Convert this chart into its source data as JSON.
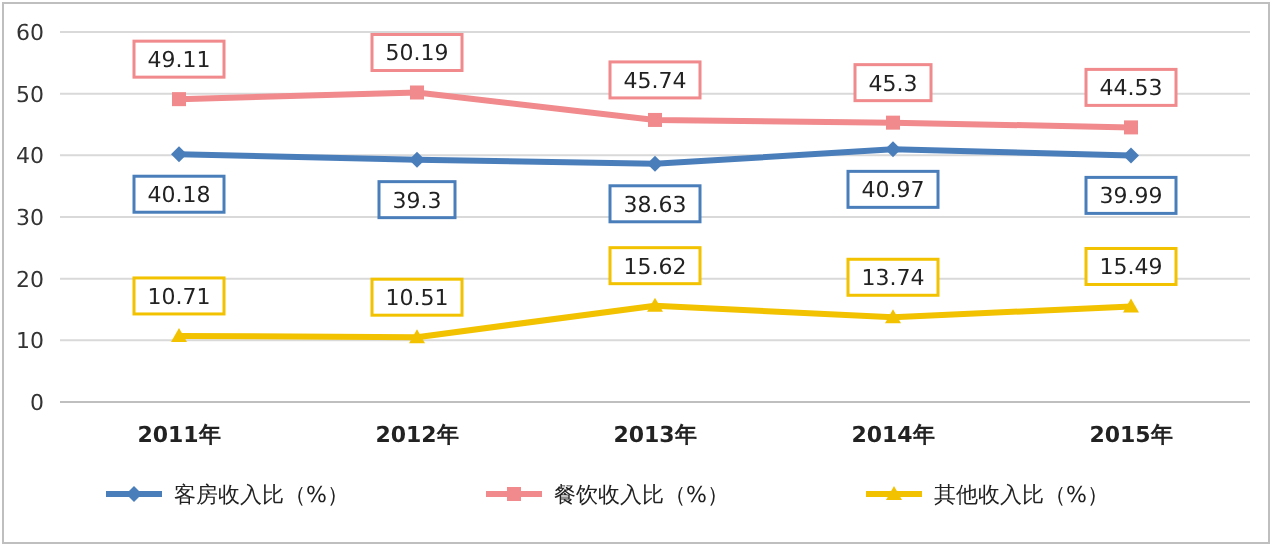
{
  "chart_data": {
    "type": "line",
    "categories": [
      "2011年",
      "2012年",
      "2013年",
      "2014年",
      "2015年"
    ],
    "series": [
      {
        "name": "客房收入比（%）",
        "color": "#4a7ebb",
        "marker": "diamond",
        "values": [
          40.18,
          39.3,
          38.63,
          40.97,
          39.99
        ]
      },
      {
        "name": "餐饮收入比（%）",
        "color": "#f08a8c",
        "marker": "square",
        "values": [
          49.11,
          50.19,
          45.74,
          45.3,
          44.53
        ]
      },
      {
        "name": "其他收入比（%）",
        "color": "#f2c200",
        "marker": "triangle",
        "values": [
          10.71,
          10.51,
          15.62,
          13.74,
          15.49
        ]
      }
    ],
    "ylim": [
      0,
      60
    ],
    "yticks": [
      0,
      10,
      20,
      30,
      40,
      50,
      60
    ],
    "grid": "y",
    "legend": "bottom",
    "data_labels": true
  }
}
